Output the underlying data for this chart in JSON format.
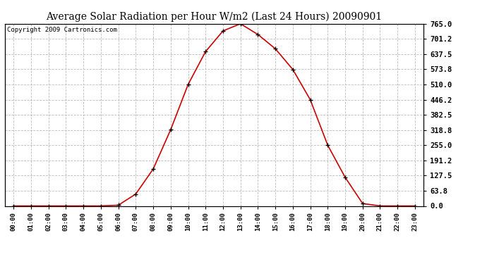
{
  "title": "Average Solar Radiation per Hour W/m2 (Last 24 Hours) 20090901",
  "copyright": "Copyright 2009 Cartronics.com",
  "hours": [
    "00:00",
    "01:00",
    "02:00",
    "03:00",
    "04:00",
    "05:00",
    "06:00",
    "07:00",
    "08:00",
    "09:00",
    "10:00",
    "11:00",
    "12:00",
    "13:00",
    "14:00",
    "15:00",
    "16:00",
    "17:00",
    "18:00",
    "19:00",
    "20:00",
    "21:00",
    "22:00",
    "23:00"
  ],
  "values": [
    0,
    0,
    0,
    0,
    0,
    0,
    3,
    50,
    155,
    320,
    510,
    648,
    735,
    765,
    720,
    660,
    573,
    446,
    255,
    120,
    10,
    0,
    0,
    0
  ],
  "line_color": "#CC0000",
  "marker": "+",
  "marker_color": "#000000",
  "marker_size": 5,
  "background_color": "#FFFFFF",
  "grid_color": "#BBBBBB",
  "grid_style": "--",
  "yticks": [
    0.0,
    63.8,
    127.5,
    191.2,
    255.0,
    318.8,
    382.5,
    446.2,
    510.0,
    573.8,
    637.5,
    701.2,
    765.0
  ],
  "ylim": [
    0,
    765
  ],
  "title_fontsize": 10,
  "copyright_fontsize": 6.5
}
